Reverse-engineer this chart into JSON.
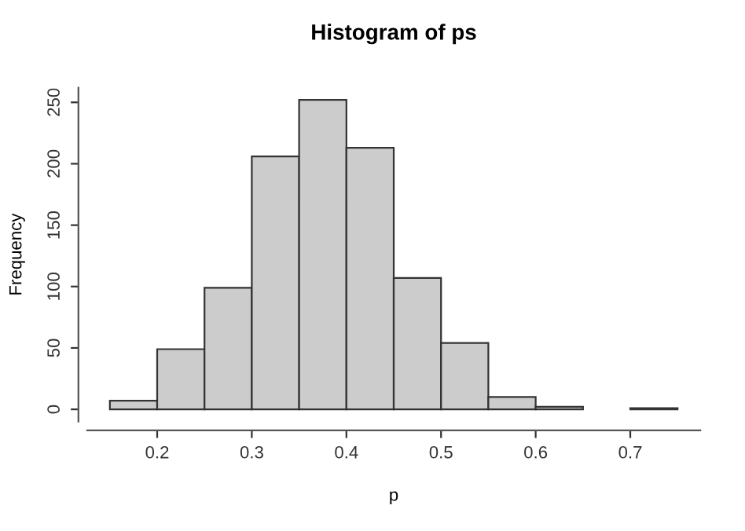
{
  "chart_data": {
    "type": "histogram",
    "title": "Histogram of ps",
    "xlabel": "p",
    "ylabel": "Frequency",
    "bins": [
      0.15,
      0.2,
      0.25,
      0.3,
      0.35,
      0.4,
      0.45,
      0.5,
      0.55,
      0.6,
      0.65,
      0.7,
      0.75
    ],
    "values": [
      7,
      49,
      99,
      206,
      252,
      213,
      107,
      54,
      10,
      2,
      0,
      1
    ],
    "color": "#cccccc",
    "xlim": [
      0.126,
      0.774
    ],
    "ylim": [
      -10,
      262
    ],
    "xticks": [
      0.2,
      0.3,
      0.4,
      0.5,
      0.6,
      0.7
    ],
    "yticks": [
      0,
      50,
      100,
      150,
      200,
      250
    ],
    "grid": false
  }
}
